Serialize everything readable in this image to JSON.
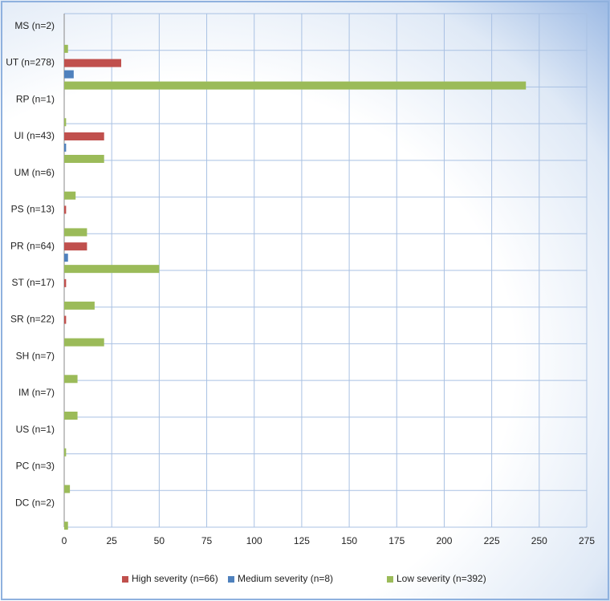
{
  "chart_data": {
    "type": "bar",
    "orientation": "horizontal",
    "categories": [
      "MS (n=2)",
      "UT (n=278)",
      "RP (n=1)",
      "UI (n=43)",
      "UM (n=6)",
      "PS (n=13)",
      "PR (n=64)",
      "ST (n=17)",
      "SR (n=22)",
      "SH (n=7)",
      "IM (n=7)",
      "US (n=1)",
      "PC (n=3)",
      "DC (n=2)"
    ],
    "series": [
      {
        "name": "High severity (n=66)",
        "color": "#c0504d",
        "values": [
          0,
          30,
          0,
          21,
          0,
          1,
          12,
          1,
          1,
          0,
          0,
          0,
          0,
          0
        ]
      },
      {
        "name": "Medium severity (n=8)",
        "color": "#4f81bd",
        "values": [
          0,
          5,
          0,
          1,
          0,
          0,
          2,
          0,
          0,
          0,
          0,
          0,
          0,
          0
        ]
      },
      {
        "name": "Low severity (n=392)",
        "color": "#9bbb59",
        "values": [
          2,
          243,
          1,
          21,
          6,
          12,
          50,
          16,
          21,
          7,
          7,
          1,
          3,
          2
        ]
      }
    ],
    "xlim": [
      0,
      275
    ],
    "xticks": [
      0,
      25,
      50,
      75,
      100,
      125,
      150,
      175,
      200,
      225,
      250,
      275
    ],
    "grid": true,
    "legend": "bottom"
  }
}
